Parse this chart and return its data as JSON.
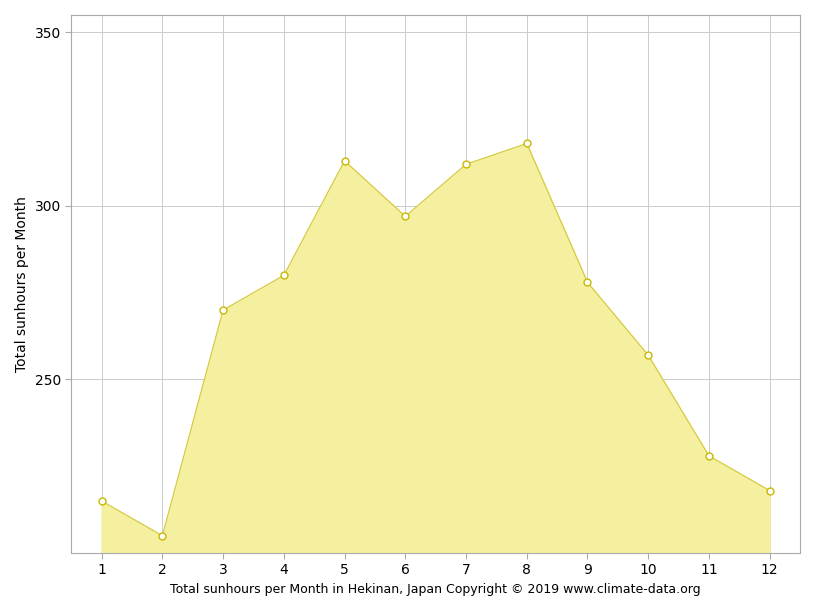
{
  "months": [
    1,
    2,
    3,
    4,
    5,
    6,
    7,
    8,
    9,
    10,
    11,
    12
  ],
  "sunhours": [
    215,
    205,
    270,
    280,
    313,
    297,
    312,
    318,
    278,
    257,
    228,
    218
  ],
  "fill_color": "#F5F0A0",
  "line_color": "#D4C840",
  "marker_facecolor": "#FFFFFF",
  "marker_edgecolor": "#C8B800",
  "ylim_bottom": 200,
  "ylim_top": 355,
  "yticks": [
    250,
    300,
    350
  ],
  "xlim_left": 0.5,
  "xlim_right": 12.5,
  "xticks": [
    1,
    2,
    3,
    4,
    5,
    6,
    7,
    8,
    9,
    10,
    11,
    12
  ],
  "ylabel": "Total sunhours per Month",
  "xlabel": "Total sunhours per Month in Hekinan, Japan Copyright © 2019 www.climate-data.org",
  "grid_color": "#cccccc",
  "bg_color": "#ffffff",
  "ylabel_fontsize": 10,
  "xlabel_fontsize": 9,
  "tick_fontsize": 10,
  "spine_color": "#aaaaaa",
  "figsize": [
    8.15,
    6.11
  ],
  "dpi": 100
}
